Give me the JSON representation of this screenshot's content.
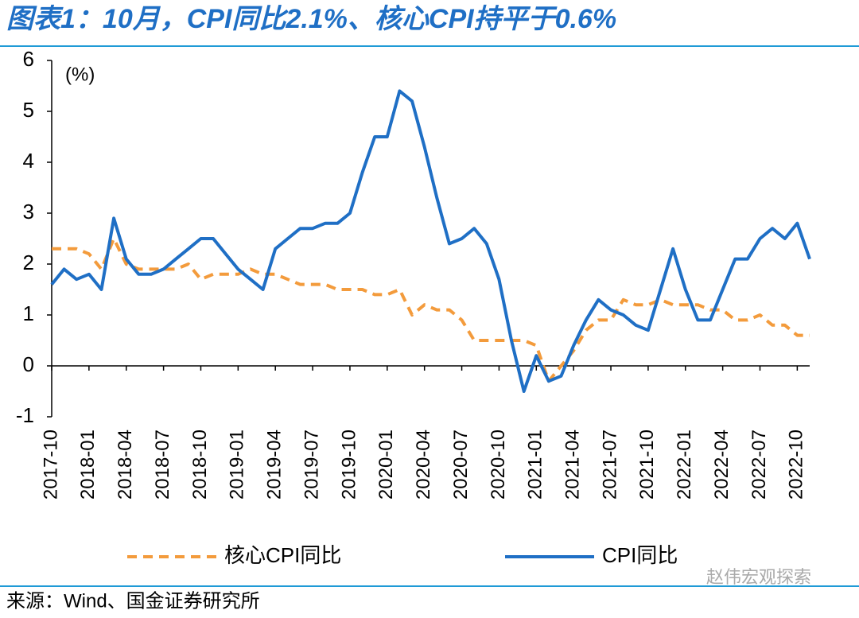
{
  "chart_data": {
    "type": "line",
    "title": "图表1：10月，CPI同比2.1%、核心CPI持平于0.6%",
    "y_label": "(%)",
    "source": "来源：Wind、国金证券研究所",
    "watermark": "赵伟宏观探索",
    "categories": [
      "2017-10",
      null,
      null,
      "2018-01",
      null,
      null,
      "2018-04",
      null,
      null,
      "2018-07",
      null,
      null,
      "2018-10",
      null,
      null,
      "2019-01",
      null,
      null,
      "2019-04",
      null,
      null,
      "2019-07",
      null,
      null,
      "2019-10",
      null,
      null,
      "2020-01",
      null,
      null,
      "2020-04",
      null,
      null,
      "2020-07",
      null,
      null,
      "2020-10",
      null,
      null,
      "2021-01",
      null,
      null,
      "2021-04",
      null,
      null,
      "2021-07",
      null,
      null,
      "2021-10",
      null,
      null,
      "2022-01",
      null,
      null,
      "2022-04",
      null,
      null,
      "2022-07",
      null,
      null,
      "2022-10",
      null
    ],
    "series": [
      {
        "name": "核心CPI同比",
        "color": "#f39b3c",
        "dashed": true,
        "values": [
          2.3,
          2.3,
          2.3,
          2.2,
          1.9,
          2.5,
          2.0,
          1.9,
          1.9,
          1.9,
          1.9,
          2.0,
          1.7,
          1.8,
          1.8,
          1.8,
          1.9,
          1.8,
          1.8,
          1.7,
          1.6,
          1.6,
          1.6,
          1.5,
          1.5,
          1.5,
          1.4,
          1.4,
          1.5,
          1.0,
          1.2,
          1.1,
          1.1,
          0.9,
          0.5,
          0.5,
          0.5,
          0.5,
          0.5,
          0.4,
          -0.3,
          0.0,
          0.3,
          0.7,
          0.9,
          0.9,
          1.3,
          1.2,
          1.2,
          1.3,
          1.2,
          1.2,
          1.2,
          1.1,
          1.1,
          0.9,
          0.9,
          1.0,
          0.8,
          0.8,
          0.6,
          0.6
        ]
      },
      {
        "name": "CPI同比",
        "color": "#1f6fc5",
        "dashed": false,
        "values": [
          1.6,
          1.9,
          1.7,
          1.8,
          1.5,
          2.9,
          2.1,
          1.8,
          1.8,
          1.9,
          2.1,
          2.3,
          2.5,
          2.5,
          2.2,
          1.9,
          1.7,
          1.5,
          2.3,
          2.5,
          2.7,
          2.7,
          2.8,
          2.8,
          3.0,
          3.8,
          4.5,
          4.5,
          5.4,
          5.2,
          4.3,
          3.3,
          2.4,
          2.5,
          2.7,
          2.4,
          1.7,
          0.5,
          -0.5,
          0.2,
          -0.3,
          -0.2,
          0.4,
          0.9,
          1.3,
          1.1,
          1.0,
          0.8,
          0.7,
          1.5,
          2.3,
          1.5,
          0.9,
          0.9,
          1.5,
          2.1,
          2.1,
          2.5,
          2.7,
          2.5,
          2.8,
          2.1
        ]
      }
    ],
    "ylim": [
      -1,
      6
    ],
    "yticks": [
      -1,
      0,
      1,
      2,
      3,
      4,
      5,
      6
    ],
    "grid": false,
    "legend": "bottom"
  }
}
